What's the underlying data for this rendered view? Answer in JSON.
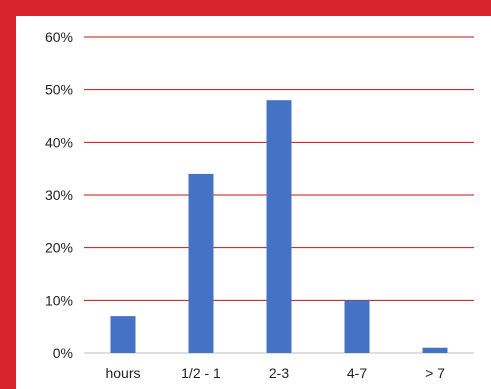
{
  "colors": {
    "frame": "#d9232d",
    "panel": "#ffffff",
    "gridline": "#cc1111",
    "bar": "#4472c4",
    "baseline": "#bfbfbf"
  },
  "chart_data": {
    "type": "bar",
    "categories": [
      "hours",
      "1/2 - 1",
      "2-3",
      "4-7",
      "> 7"
    ],
    "values": [
      7,
      34,
      48,
      10,
      1
    ],
    "value_unit": "percent",
    "ylim": [
      0,
      60
    ],
    "yticks": [
      0,
      10,
      20,
      30,
      40,
      50,
      60
    ],
    "ytick_labels": [
      "0%",
      "10%",
      "20%",
      "30%",
      "40%",
      "50%",
      "60%"
    ],
    "grid": true,
    "legend": "none",
    "title": "",
    "xlabel": "",
    "ylabel": ""
  }
}
